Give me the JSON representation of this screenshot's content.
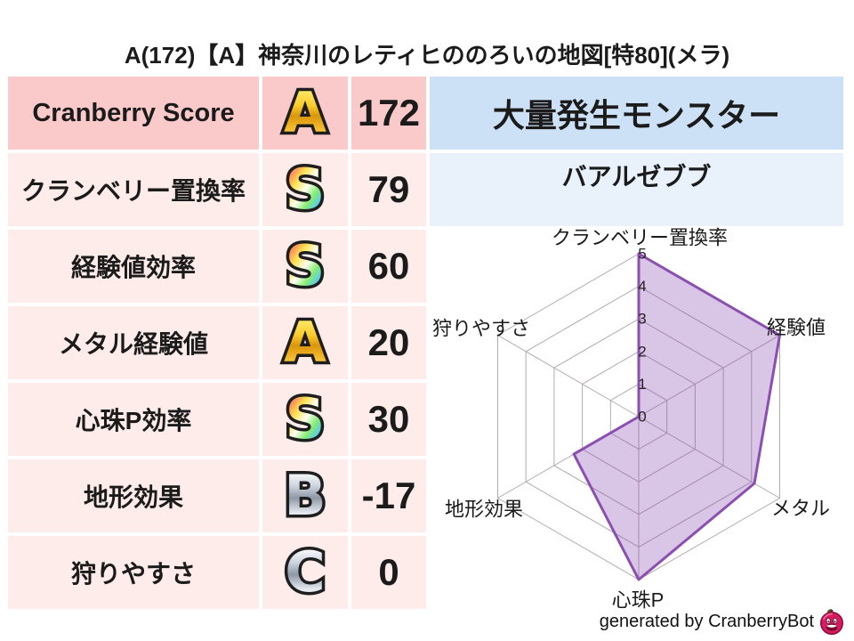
{
  "title": "A(172)【A】神奈川のレティヒののろいの地図[特80](メラ)",
  "table": {
    "rows": [
      {
        "label": "Cranberry Score",
        "grade": "A",
        "value": "172"
      },
      {
        "label": "クランベリー置換率",
        "grade": "S",
        "value": "79"
      },
      {
        "label": "経験値効率",
        "grade": "S",
        "value": "60"
      },
      {
        "label": "メタル経験値",
        "grade": "A",
        "value": "20"
      },
      {
        "label": "心珠P効率",
        "grade": "S",
        "value": "30"
      },
      {
        "label": "地形効果",
        "grade": "B",
        "value": "-17"
      },
      {
        "label": "狩りやすさ",
        "grade": "C",
        "value": "0"
      }
    ]
  },
  "monster_panel": {
    "header": "大量発生モンスター",
    "name": "バアルゼブブ"
  },
  "chart_data": {
    "type": "radar",
    "categories": [
      "クランベリー置換率",
      "経験値",
      "メタル",
      "心珠P",
      "地形効果",
      "狩りやすさ"
    ],
    "values": [
      5,
      5,
      4.1,
      5,
      2.3,
      0
    ],
    "max": 5,
    "ticks": [
      "0",
      "1",
      "2",
      "3",
      "4",
      "5"
    ],
    "grid": "hexagon-web",
    "legend": "none",
    "fill_color": "#8b4fb0",
    "fill_opacity": 0.33,
    "stroke_color": "#8b4fb0",
    "grid_color": "#b2aab2",
    "tick_color": "#222222",
    "label_color": "#1a1a1a"
  },
  "footer": {
    "credit": "generated by CranberryBot",
    "icon": "cranberry-bot-icon"
  },
  "colors": {
    "text": "#1b1b1b",
    "row_header_bg": "#fac9c9",
    "row_bg": "#fdecea",
    "monster_header_bg": "#cce1f6",
    "monster_name_bg": "#e9f2fb"
  }
}
